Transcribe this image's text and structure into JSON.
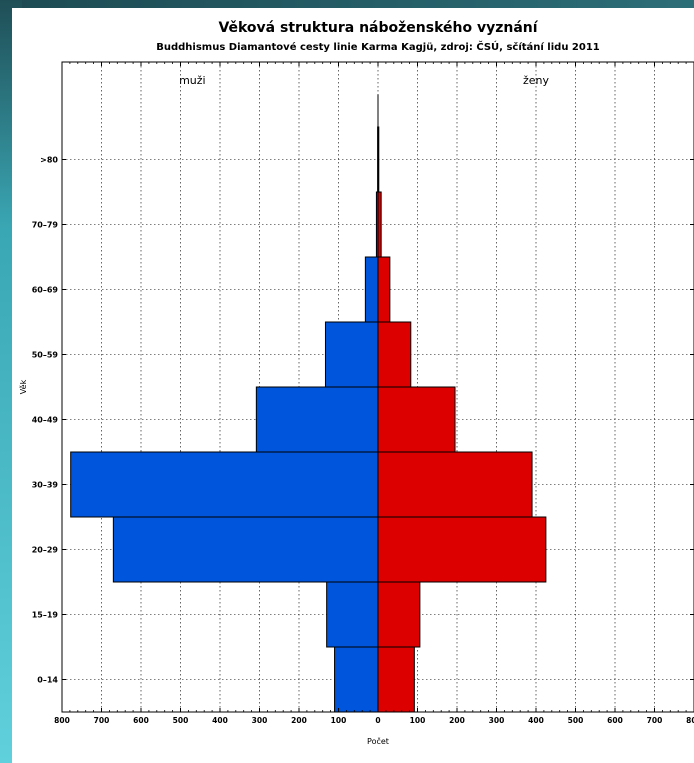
{
  "chart_data": {
    "type": "bar",
    "orientation": "horizontal",
    "title": "Věková struktura náboženského vyznání",
    "subtitle": "Buddhismus Diamantové cesty linie Karma Kagjü, zdroj: ČSÚ, sčítání lidu 2011",
    "xlabel": "Počet",
    "ylabel": "Věk",
    "group_labels": {
      "left": "muži",
      "right": "ženy"
    },
    "categories": [
      "0–14",
      "15–19",
      "20–29",
      "30–39",
      "40–49",
      "50–59",
      "60–69",
      "70–79",
      ">80"
    ],
    "series": [
      {
        "name": "muži",
        "color": "#0055dd",
        "values": [
          110,
          130,
          670,
          778,
          308,
          133,
          32,
          4,
          1
        ]
      },
      {
        "name": "ženy",
        "color": "#dd0000",
        "values": [
          92,
          106,
          425,
          390,
          195,
          83,
          30,
          8,
          2
        ]
      }
    ],
    "xlim": [
      -800,
      800
    ],
    "xticks": [
      -800,
      -700,
      -600,
      -500,
      -400,
      -300,
      -200,
      -100,
      0,
      100,
      200,
      300,
      400,
      500,
      600,
      700,
      800
    ],
    "xtick_labels": [
      "800",
      "700",
      "600",
      "500",
      "400",
      "300",
      "200",
      "100",
      "0",
      "100",
      "200",
      "300",
      "400",
      "500",
      "600",
      "700",
      "800"
    ],
    "grid": true
  }
}
